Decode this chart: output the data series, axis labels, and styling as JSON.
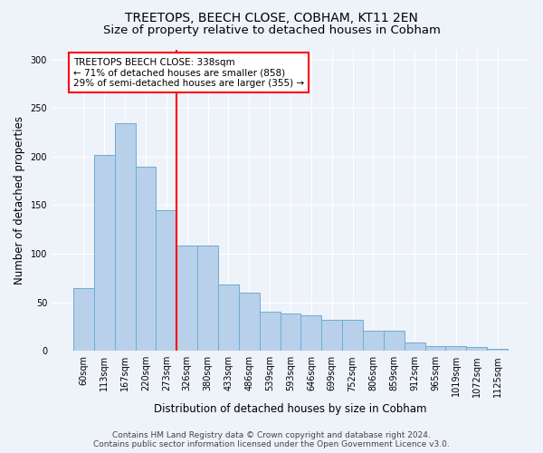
{
  "title": "TREETOPS, BEECH CLOSE, COBHAM, KT11 2EN",
  "subtitle": "Size of property relative to detached houses in Cobham",
  "xlabel": "Distribution of detached houses by size in Cobham",
  "ylabel": "Number of detached properties",
  "categories": [
    "60sqm",
    "113sqm",
    "167sqm",
    "220sqm",
    "273sqm",
    "326sqm",
    "380sqm",
    "433sqm",
    "486sqm",
    "539sqm",
    "593sqm",
    "646sqm",
    "699sqm",
    "752sqm",
    "806sqm",
    "859sqm",
    "912sqm",
    "965sqm",
    "1019sqm",
    "1072sqm",
    "1125sqm"
  ],
  "values": [
    65,
    202,
    234,
    190,
    145,
    108,
    108,
    68,
    60,
    40,
    38,
    37,
    32,
    32,
    21,
    21,
    9,
    5,
    5,
    4,
    2
  ],
  "bar_color": "#b8d0ea",
  "bar_edge_color": "#6baed6",
  "vline_x_index": 5,
  "vline_color": "red",
  "annotation_text": "TREETOPS BEECH CLOSE: 338sqm\n← 71% of detached houses are smaller (858)\n29% of semi-detached houses are larger (355) →",
  "annotation_box_color": "white",
  "annotation_box_edge_color": "red",
  "ylim": [
    0,
    310
  ],
  "yticks": [
    0,
    50,
    100,
    150,
    200,
    250,
    300
  ],
  "footer_line1": "Contains HM Land Registry data © Crown copyright and database right 2024.",
  "footer_line2": "Contains public sector information licensed under the Open Government Licence v3.0.",
  "bg_color": "#eef2f9",
  "grid_color": "#ffffff",
  "title_fontsize": 10,
  "subtitle_fontsize": 9.5,
  "tick_fontsize": 7,
  "ylabel_fontsize": 8.5,
  "xlabel_fontsize": 8.5,
  "footer_fontsize": 6.5,
  "annot_fontsize": 7.5
}
